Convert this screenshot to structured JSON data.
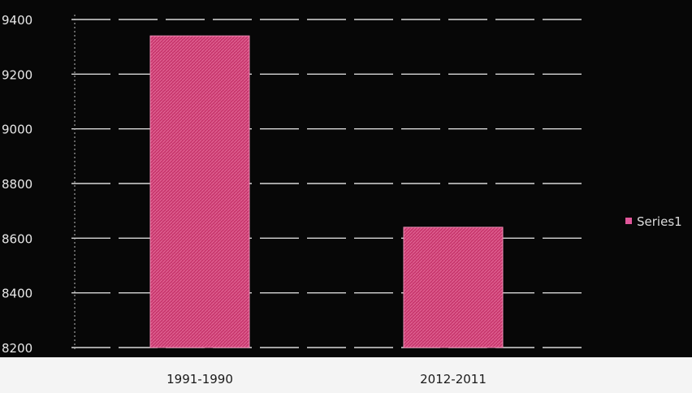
{
  "chart_data": {
    "type": "bar",
    "categories": [
      "1991-1990",
      "2012-2011"
    ],
    "series": [
      {
        "name": "Series1",
        "values": [
          9340,
          8640
        ]
      }
    ],
    "title": "",
    "xlabel": "",
    "ylabel": "",
    "ylim": [
      8200,
      9400
    ],
    "yticks": [
      8200,
      8400,
      8600,
      8800,
      9000,
      9200,
      9400
    ],
    "ytick_labels": [
      "8200",
      "8400",
      "8600",
      "8800",
      "9000",
      "9200",
      "9400"
    ],
    "grid": true,
    "legend": "right",
    "colors": {
      "bar": "#c8386e",
      "bar_highlight": "#e85a92",
      "plot_background": "#050505",
      "grid": "#d8d8d8"
    }
  }
}
